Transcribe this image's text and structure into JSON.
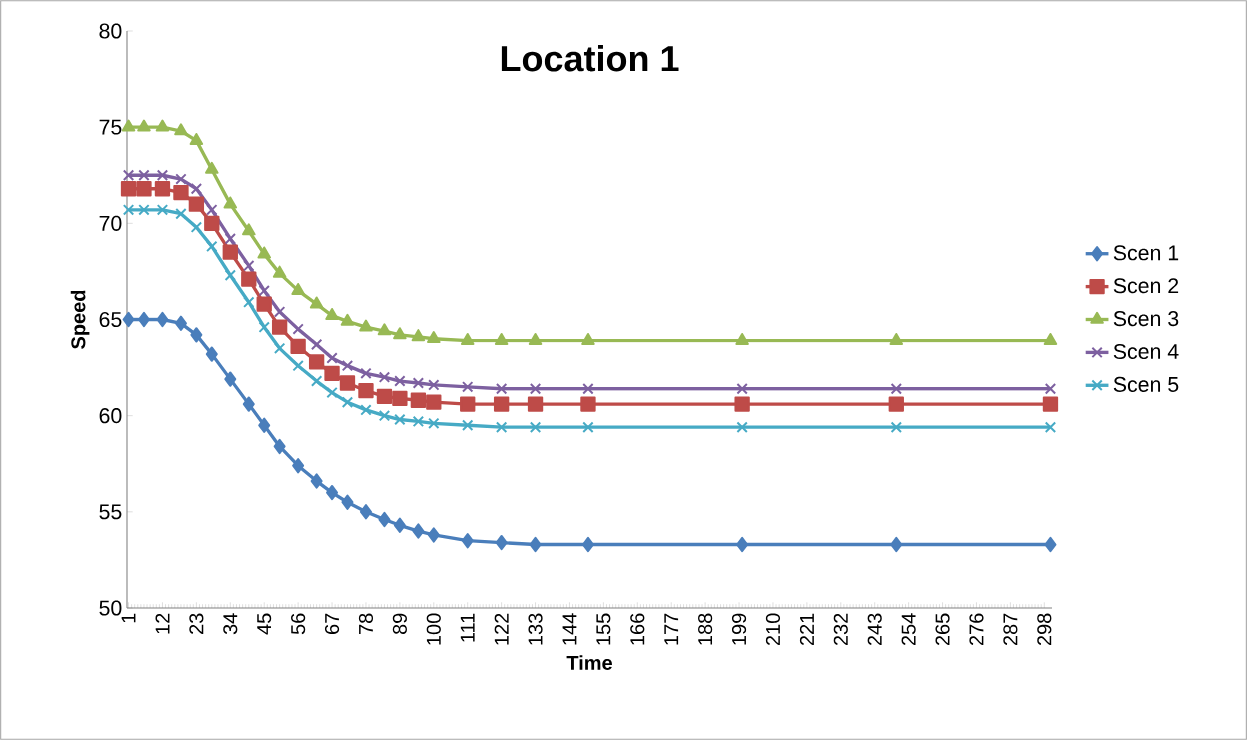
{
  "chart_data": {
    "type": "line",
    "title": "Location 1",
    "xlabel": "Time",
    "ylabel": "Speed",
    "legend": "right",
    "grid": false,
    "xlim": [
      0.5,
      300.5
    ],
    "xticks": [
      1,
      12,
      23,
      34,
      45,
      56,
      67,
      78,
      89,
      100,
      111,
      122,
      133,
      144,
      155,
      166,
      177,
      188,
      199,
      210,
      221,
      232,
      243,
      254,
      265,
      276,
      287,
      298
    ],
    "ylim": [
      50,
      80
    ],
    "yticks": [
      50,
      55,
      60,
      65,
      70,
      75,
      80
    ],
    "series": [
      {
        "name": "Scen 1",
        "color": "#4a7ebb",
        "marker": "diamond",
        "x": [
          1,
          6,
          12,
          18,
          23,
          28,
          34,
          40,
          45,
          50,
          56,
          62,
          67,
          72,
          78,
          84,
          89,
          95,
          100,
          111,
          122,
          133,
          150,
          200,
          250,
          300
        ],
        "values": [
          65,
          65,
          65,
          64.8,
          64.2,
          63.2,
          61.9,
          60.6,
          59.5,
          58.4,
          57.4,
          56.6,
          56.0,
          55.5,
          55.0,
          54.6,
          54.3,
          54.0,
          53.8,
          53.5,
          53.4,
          53.3,
          53.3,
          53.3,
          53.3,
          53.3
        ]
      },
      {
        "name": "Scen 2",
        "color": "#be4b48",
        "marker": "square",
        "x": [
          1,
          6,
          12,
          18,
          23,
          28,
          34,
          40,
          45,
          50,
          56,
          62,
          67,
          72,
          78,
          84,
          89,
          95,
          100,
          111,
          122,
          133,
          150,
          200,
          250,
          300
        ],
        "values": [
          71.8,
          71.8,
          71.8,
          71.6,
          71.0,
          70.0,
          68.5,
          67.1,
          65.8,
          64.6,
          63.6,
          62.8,
          62.2,
          61.7,
          61.3,
          61.0,
          60.9,
          60.8,
          60.7,
          60.6,
          60.6,
          60.6,
          60.6,
          60.6,
          60.6,
          60.6
        ]
      },
      {
        "name": "Scen 3",
        "color": "#98b954",
        "marker": "triangle",
        "x": [
          1,
          6,
          12,
          18,
          23,
          28,
          34,
          40,
          45,
          50,
          56,
          62,
          67,
          72,
          78,
          84,
          89,
          95,
          100,
          111,
          122,
          133,
          150,
          200,
          250,
          300
        ],
        "values": [
          75,
          75,
          75,
          74.8,
          74.3,
          72.8,
          71.0,
          69.6,
          68.4,
          67.4,
          66.5,
          65.8,
          65.2,
          64.9,
          64.6,
          64.4,
          64.2,
          64.1,
          64.0,
          63.9,
          63.9,
          63.9,
          63.9,
          63.9,
          63.9,
          63.9
        ]
      },
      {
        "name": "Scen 4",
        "color": "#7d60a0",
        "marker": "cross",
        "x": [
          1,
          6,
          12,
          18,
          23,
          28,
          34,
          40,
          45,
          50,
          56,
          62,
          67,
          72,
          78,
          84,
          89,
          95,
          100,
          111,
          122,
          133,
          150,
          200,
          250,
          300
        ],
        "values": [
          72.5,
          72.5,
          72.5,
          72.3,
          71.8,
          70.7,
          69.2,
          67.8,
          66.5,
          65.4,
          64.5,
          63.7,
          63.0,
          62.6,
          62.2,
          62.0,
          61.8,
          61.7,
          61.6,
          61.5,
          61.4,
          61.4,
          61.4,
          61.4,
          61.4,
          61.4
        ]
      },
      {
        "name": "Scen 5",
        "color": "#46aac5",
        "marker": "cross",
        "x": [
          1,
          6,
          12,
          18,
          23,
          28,
          34,
          40,
          45,
          50,
          56,
          62,
          67,
          72,
          78,
          84,
          89,
          95,
          100,
          111,
          122,
          133,
          150,
          200,
          250,
          300
        ],
        "values": [
          70.7,
          70.7,
          70.7,
          70.5,
          69.8,
          68.8,
          67.3,
          65.9,
          64.6,
          63.5,
          62.6,
          61.8,
          61.2,
          60.7,
          60.3,
          60.0,
          59.8,
          59.7,
          59.6,
          59.5,
          59.4,
          59.4,
          59.4,
          59.4,
          59.4,
          59.4
        ]
      }
    ]
  }
}
